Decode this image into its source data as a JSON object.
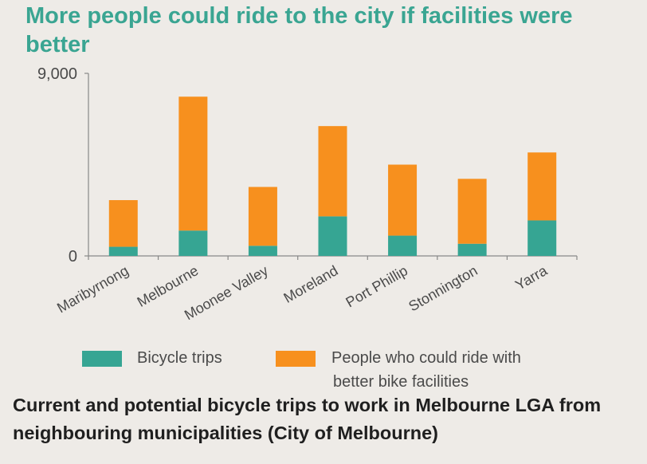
{
  "title": "More people could ride to the city if facilities were better",
  "caption": "Current and potential bicycle trips to work in Melbourne LGA from neighbouring municipalities (City of Melbourne)",
  "colors": {
    "title": "#3aa592",
    "bicycle": "#36a593",
    "potential": "#f7901e",
    "axis": "#888888",
    "text": "#4a4a4a"
  },
  "chart_data": {
    "type": "bar",
    "stacked": true,
    "categories": [
      "Maribyrnong",
      "Melbourne",
      "Moonee Valley",
      "Moreland",
      "Port Phillip",
      "Stonnington",
      "Yarra"
    ],
    "series": [
      {
        "name": "Bicycle trips",
        "values": [
          450,
          1250,
          500,
          1950,
          1000,
          600,
          1750
        ]
      },
      {
        "name": "People who could ride with better bike facilities",
        "values": [
          2300,
          6600,
          2900,
          4450,
          3500,
          3200,
          3350
        ]
      }
    ],
    "ylim": [
      0,
      9000
    ],
    "yticks": [
      0,
      9000
    ],
    "ytick_labels": [
      "0",
      "9,000"
    ],
    "xlabel": "",
    "ylabel": "",
    "legend": "bottom",
    "grid": false
  },
  "legend": [
    {
      "label_line1": "Bicycle trips",
      "label_line2": ""
    },
    {
      "label_line1": "People who could ride with",
      "label_line2": "better bike facilities"
    }
  ]
}
